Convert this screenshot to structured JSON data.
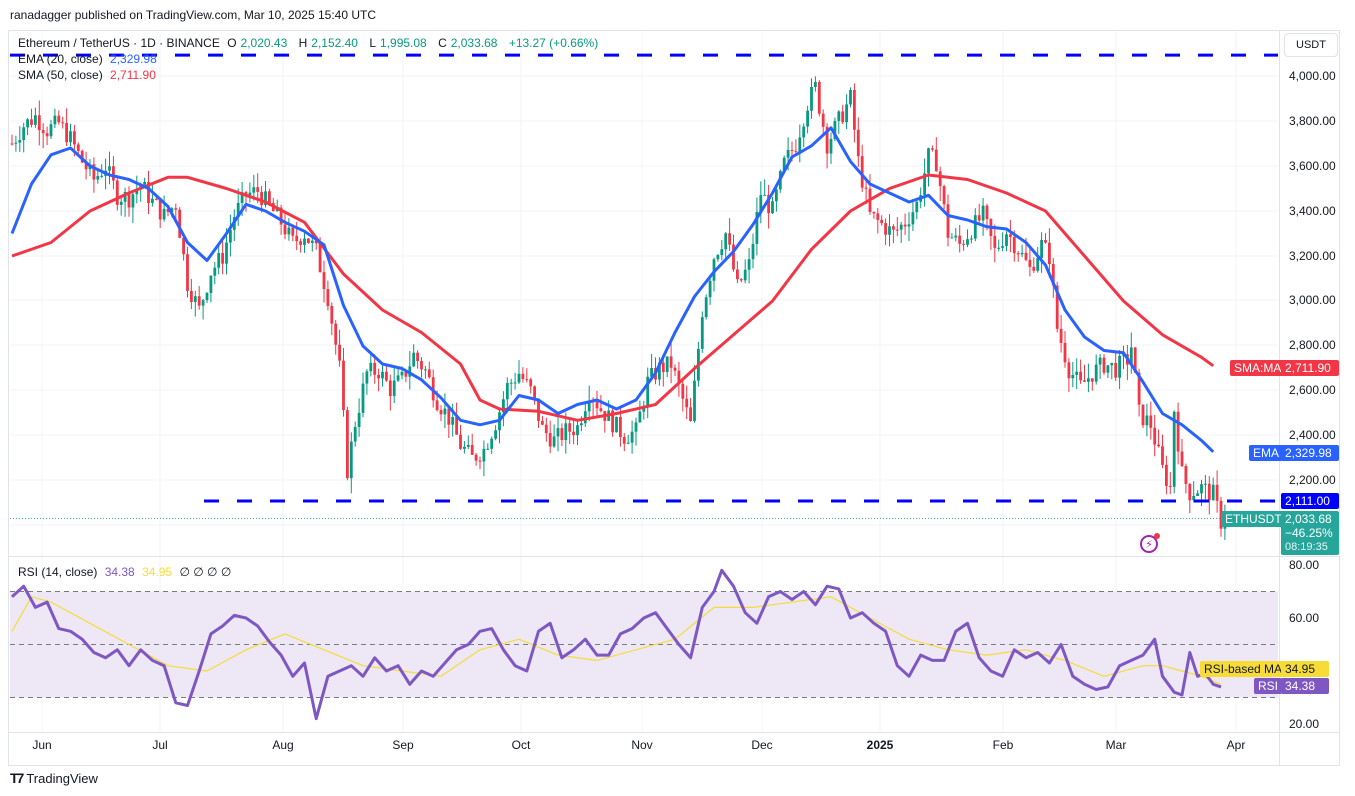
{
  "publisher": "ranadagger published on TradingView.com, Mar 10, 2025 15:40 UTC",
  "header": {
    "symbol": "Ethereum / TetherUS · 1D · BINANCE",
    "open_label": "O",
    "open": "2,020.43",
    "high_label": "H",
    "high": "2,152.40",
    "low_label": "L",
    "low": "1,995.08",
    "close_label": "C",
    "close": "2,033.68",
    "change": "+13.27 (+0.66%)"
  },
  "indicators": {
    "ema": {
      "label": "EMA (20, close)",
      "value": "2,329.98"
    },
    "sma": {
      "label": "SMA (50, close)",
      "value": "2,711.90"
    },
    "rsi": {
      "label": "RSI (14, close)",
      "value": "34.38",
      "ma_value": "34.95",
      "extra": "∅  ∅  ∅  ∅"
    }
  },
  "price_axis": {
    "currency": "USDT",
    "ticks": [
      "4,000.00",
      "3,800.00",
      "3,600.00",
      "3,400.00",
      "3,200.00",
      "3,000.00",
      "2,800.00",
      "2,600.00",
      "2,400.00",
      "2,200.00"
    ]
  },
  "rsi_axis": {
    "ticks": [
      "80.00",
      "60.00",
      "20.00"
    ]
  },
  "tags": {
    "sma": {
      "name": "SMA:MA",
      "value": "2,711.90"
    },
    "ema": {
      "name": "EMA",
      "value": "2,329.98"
    },
    "support": {
      "value": "2,111.00"
    },
    "last": {
      "name": "ETHUSDT",
      "value": "2,033.68",
      "change": "−46.25%",
      "countdown": "08:19:35"
    },
    "rsi_ma": {
      "name": "RSI-based MA",
      "value": "34.95"
    },
    "rsi": {
      "name": "RSI",
      "value": "34.38"
    }
  },
  "time_axis": [
    "Jun",
    "Jul",
    "Aug",
    "Sep",
    "Oct",
    "Nov",
    "Dec",
    "2025",
    "Feb",
    "Mar",
    "Apr"
  ],
  "branding": "TradingView",
  "colors": {
    "up": "#089981",
    "down": "#f23645",
    "ema": "#2962ff",
    "sma": "#f23645",
    "rsi": "#7e57c2",
    "rsi_ma": "#f7dc38",
    "hline": "#0000ff",
    "band": "#ede7f6"
  },
  "chart_data": {
    "type": "candlestick",
    "title": "Ethereum / TetherUS · 1D · BINANCE",
    "ylabel": "USDT",
    "ylim": [
      1900,
      4200
    ],
    "x_ticks": [
      "Jun",
      "Jul",
      "Aug",
      "Sep",
      "Oct",
      "Nov",
      "Dec",
      "2025",
      "Feb",
      "Mar",
      "Apr"
    ],
    "horizontal_lines": [
      4093,
      2111
    ],
    "last_close": 2033.68,
    "close_path": [
      [
        0,
        3700
      ],
      [
        3,
        3780
      ],
      [
        6,
        3820
      ],
      [
        9,
        3760
      ],
      [
        12,
        3790
      ],
      [
        15,
        3720
      ],
      [
        18,
        3620
      ],
      [
        21,
        3540
      ],
      [
        24,
        3600
      ],
      [
        27,
        3470
      ],
      [
        30,
        3460
      ],
      [
        33,
        3520
      ],
      [
        36,
        3440
      ],
      [
        39,
        3380
      ],
      [
        42,
        3430
      ],
      [
        45,
        3080
      ],
      [
        48,
        2960
      ],
      [
        51,
        3130
      ],
      [
        54,
        3200
      ],
      [
        57,
        3380
      ],
      [
        60,
        3470
      ],
      [
        63,
        3490
      ],
      [
        66,
        3420
      ],
      [
        69,
        3350
      ],
      [
        72,
        3260
      ],
      [
        75,
        3300
      ],
      [
        78,
        3220
      ],
      [
        81,
        3020
      ],
      [
        84,
        2700
      ],
      [
        86,
        2250
      ],
      [
        88,
        2460
      ],
      [
        91,
        2680
      ],
      [
        94,
        2690
      ],
      [
        97,
        2610
      ],
      [
        100,
        2650
      ],
      [
        103,
        2760
      ],
      [
        106,
        2690
      ],
      [
        109,
        2560
      ],
      [
        112,
        2480
      ],
      [
        115,
        2360
      ],
      [
        118,
        2300
      ],
      [
        121,
        2340
      ],
      [
        124,
        2460
      ],
      [
        127,
        2620
      ],
      [
        130,
        2680
      ],
      [
        133,
        2600
      ],
      [
        136,
        2430
      ],
      [
        139,
        2380
      ],
      [
        142,
        2420
      ],
      [
        145,
        2440
      ],
      [
        148,
        2600
      ],
      [
        151,
        2520
      ],
      [
        154,
        2460
      ],
      [
        157,
        2400
      ],
      [
        160,
        2420
      ],
      [
        163,
        2640
      ],
      [
        166,
        2700
      ],
      [
        169,
        2720
      ],
      [
        172,
        2560
      ],
      [
        174,
        2450
      ],
      [
        177,
        2960
      ],
      [
        180,
        3200
      ],
      [
        183,
        3300
      ],
      [
        186,
        3060
      ],
      [
        189,
        3160
      ],
      [
        192,
        3480
      ],
      [
        195,
        3400
      ],
      [
        198,
        3610
      ],
      [
        201,
        3700
      ],
      [
        204,
        3880
      ],
      [
        206,
        3950
      ],
      [
        209,
        3700
      ],
      [
        212,
        3800
      ],
      [
        215,
        3900
      ],
      [
        217,
        3620
      ],
      [
        220,
        3380
      ],
      [
        223,
        3340
      ],
      [
        226,
        3300
      ],
      [
        229,
        3350
      ],
      [
        232,
        3430
      ],
      [
        235,
        3640
      ],
      [
        237,
        3620
      ],
      [
        240,
        3300
      ],
      [
        243,
        3250
      ],
      [
        246,
        3320
      ],
      [
        249,
        3380
      ],
      [
        252,
        3220
      ],
      [
        255,
        3310
      ],
      [
        258,
        3230
      ],
      [
        261,
        3140
      ],
      [
        264,
        3250
      ],
      [
        266,
        3200
      ],
      [
        268,
        2880
      ],
      [
        271,
        2700
      ],
      [
        274,
        2620
      ],
      [
        277,
        2680
      ],
      [
        280,
        2720
      ],
      [
        283,
        2700
      ],
      [
        286,
        2740
      ],
      [
        287,
        2800
      ],
      [
        289,
        2500
      ],
      [
        292,
        2450
      ],
      [
        295,
        2250
      ],
      [
        297,
        2170
      ],
      [
        298,
        2520
      ],
      [
        300,
        2230
      ],
      [
        302,
        2150
      ],
      [
        305,
        2170
      ],
      [
        308,
        2140
      ],
      [
        310,
        2020
      ],
      [
        311,
        2034
      ]
    ],
    "ema20_path": [
      [
        0,
        3300
      ],
      [
        5,
        3520
      ],
      [
        10,
        3650
      ],
      [
        15,
        3680
      ],
      [
        20,
        3600
      ],
      [
        25,
        3560
      ],
      [
        30,
        3540
      ],
      [
        35,
        3500
      ],
      [
        40,
        3420
      ],
      [
        45,
        3260
      ],
      [
        50,
        3180
      ],
      [
        55,
        3300
      ],
      [
        60,
        3430
      ],
      [
        65,
        3400
      ],
      [
        70,
        3350
      ],
      [
        75,
        3310
      ],
      [
        80,
        3250
      ],
      [
        85,
        2980
      ],
      [
        90,
        2800
      ],
      [
        95,
        2720
      ],
      [
        100,
        2700
      ],
      [
        105,
        2650
      ],
      [
        110,
        2570
      ],
      [
        115,
        2470
      ],
      [
        120,
        2450
      ],
      [
        125,
        2470
      ],
      [
        130,
        2580
      ],
      [
        135,
        2560
      ],
      [
        140,
        2500
      ],
      [
        145,
        2540
      ],
      [
        150,
        2560
      ],
      [
        155,
        2520
      ],
      [
        160,
        2560
      ],
      [
        165,
        2680
      ],
      [
        170,
        2860
      ],
      [
        175,
        3020
      ],
      [
        180,
        3130
      ],
      [
        185,
        3220
      ],
      [
        190,
        3340
      ],
      [
        195,
        3480
      ],
      [
        200,
        3640
      ],
      [
        205,
        3690
      ],
      [
        210,
        3770
      ],
      [
        215,
        3620
      ],
      [
        220,
        3520
      ],
      [
        225,
        3480
      ],
      [
        230,
        3440
      ],
      [
        235,
        3470
      ],
      [
        240,
        3380
      ],
      [
        245,
        3360
      ],
      [
        250,
        3330
      ],
      [
        255,
        3320
      ],
      [
        260,
        3260
      ],
      [
        265,
        3160
      ],
      [
        270,
        2960
      ],
      [
        275,
        2840
      ],
      [
        280,
        2780
      ],
      [
        285,
        2770
      ],
      [
        290,
        2640
      ],
      [
        295,
        2500
      ],
      [
        300,
        2450
      ],
      [
        305,
        2380
      ],
      [
        308,
        2330
      ]
    ],
    "sma50_path": [
      [
        0,
        3200
      ],
      [
        10,
        3260
      ],
      [
        20,
        3400
      ],
      [
        30,
        3480
      ],
      [
        40,
        3550
      ],
      [
        45,
        3550
      ],
      [
        55,
        3500
      ],
      [
        65,
        3440
      ],
      [
        75,
        3350
      ],
      [
        85,
        3120
      ],
      [
        95,
        2960
      ],
      [
        105,
        2860
      ],
      [
        115,
        2720
      ],
      [
        120,
        2560
      ],
      [
        125,
        2520
      ],
      [
        135,
        2510
      ],
      [
        145,
        2470
      ],
      [
        155,
        2500
      ],
      [
        165,
        2540
      ],
      [
        175,
        2700
      ],
      [
        185,
        2850
      ],
      [
        195,
        3000
      ],
      [
        205,
        3230
      ],
      [
        215,
        3400
      ],
      [
        225,
        3500
      ],
      [
        235,
        3560
      ],
      [
        245,
        3540
      ],
      [
        255,
        3480
      ],
      [
        265,
        3400
      ],
      [
        275,
        3200
      ],
      [
        285,
        3000
      ],
      [
        295,
        2850
      ],
      [
        305,
        2750
      ],
      [
        308,
        2712
      ]
    ],
    "rsi_path": [
      [
        0,
        68
      ],
      [
        3,
        72
      ],
      [
        6,
        64
      ],
      [
        9,
        66
      ],
      [
        12,
        56
      ],
      [
        15,
        55
      ],
      [
        18,
        52
      ],
      [
        21,
        47
      ],
      [
        24,
        45
      ],
      [
        27,
        48
      ],
      [
        30,
        42
      ],
      [
        33,
        48
      ],
      [
        36,
        44
      ],
      [
        39,
        42
      ],
      [
        42,
        28
      ],
      [
        45,
        27
      ],
      [
        48,
        40
      ],
      [
        51,
        54
      ],
      [
        54,
        57
      ],
      [
        57,
        61
      ],
      [
        60,
        60
      ],
      [
        63,
        57
      ],
      [
        66,
        51
      ],
      [
        69,
        46
      ],
      [
        72,
        38
      ],
      [
        75,
        43
      ],
      [
        78,
        22
      ],
      [
        81,
        38
      ],
      [
        84,
        40
      ],
      [
        87,
        42
      ],
      [
        90,
        38
      ],
      [
        93,
        45
      ],
      [
        96,
        40
      ],
      [
        99,
        42
      ],
      [
        102,
        35
      ],
      [
        105,
        40
      ],
      [
        108,
        38
      ],
      [
        111,
        43
      ],
      [
        114,
        48
      ],
      [
        117,
        50
      ],
      [
        120,
        55
      ],
      [
        123,
        56
      ],
      [
        126,
        48
      ],
      [
        129,
        42
      ],
      [
        132,
        40
      ],
      [
        135,
        55
      ],
      [
        138,
        58
      ],
      [
        141,
        45
      ],
      [
        144,
        48
      ],
      [
        147,
        52
      ],
      [
        150,
        46
      ],
      [
        153,
        46
      ],
      [
        156,
        54
      ],
      [
        159,
        56
      ],
      [
        162,
        60
      ],
      [
        165,
        62
      ],
      [
        168,
        56
      ],
      [
        171,
        50
      ],
      [
        174,
        45
      ],
      [
        177,
        64
      ],
      [
        180,
        70
      ],
      [
        182,
        78
      ],
      [
        185,
        72
      ],
      [
        188,
        62
      ],
      [
        191,
        58
      ],
      [
        194,
        68
      ],
      [
        197,
        70
      ],
      [
        200,
        67
      ],
      [
        203,
        70
      ],
      [
        206,
        65
      ],
      [
        209,
        72
      ],
      [
        212,
        71
      ],
      [
        215,
        60
      ],
      [
        218,
        62
      ],
      [
        221,
        58
      ],
      [
        224,
        55
      ],
      [
        227,
        42
      ],
      [
        230,
        38
      ],
      [
        233,
        46
      ],
      [
        236,
        44
      ],
      [
        239,
        44
      ],
      [
        242,
        55
      ],
      [
        245,
        58
      ],
      [
        248,
        45
      ],
      [
        251,
        40
      ],
      [
        254,
        38
      ],
      [
        257,
        48
      ],
      [
        260,
        45
      ],
      [
        263,
        47
      ],
      [
        266,
        43
      ],
      [
        269,
        50
      ],
      [
        272,
        38
      ],
      [
        275,
        35
      ],
      [
        278,
        33
      ],
      [
        281,
        34
      ],
      [
        284,
        42
      ],
      [
        287,
        44
      ],
      [
        290,
        46
      ],
      [
        293,
        52
      ],
      [
        295,
        38
      ],
      [
        298,
        32
      ],
      [
        300,
        31
      ],
      [
        302,
        47
      ],
      [
        304,
        38
      ],
      [
        306,
        39
      ],
      [
        308,
        35
      ],
      [
        310,
        34
      ]
    ],
    "rsi_ma_path": [
      [
        0,
        55
      ],
      [
        5,
        68
      ],
      [
        10,
        66
      ],
      [
        20,
        58
      ],
      [
        30,
        50
      ],
      [
        40,
        42
      ],
      [
        50,
        40
      ],
      [
        60,
        48
      ],
      [
        70,
        54
      ],
      [
        80,
        48
      ],
      [
        90,
        42
      ],
      [
        100,
        40
      ],
      [
        110,
        38
      ],
      [
        120,
        48
      ],
      [
        130,
        52
      ],
      [
        140,
        46
      ],
      [
        150,
        44
      ],
      [
        160,
        48
      ],
      [
        170,
        52
      ],
      [
        180,
        64
      ],
      [
        190,
        64
      ],
      [
        200,
        66
      ],
      [
        210,
        68
      ],
      [
        220,
        60
      ],
      [
        230,
        52
      ],
      [
        240,
        48
      ],
      [
        250,
        46
      ],
      [
        260,
        48
      ],
      [
        270,
        44
      ],
      [
        280,
        38
      ],
      [
        290,
        42
      ],
      [
        295,
        42
      ],
      [
        300,
        40
      ],
      [
        305,
        38
      ],
      [
        310,
        35
      ]
    ],
    "rsi_levels": [
      70,
      50,
      30
    ],
    "rsi_ylim": [
      17,
      83
    ]
  }
}
